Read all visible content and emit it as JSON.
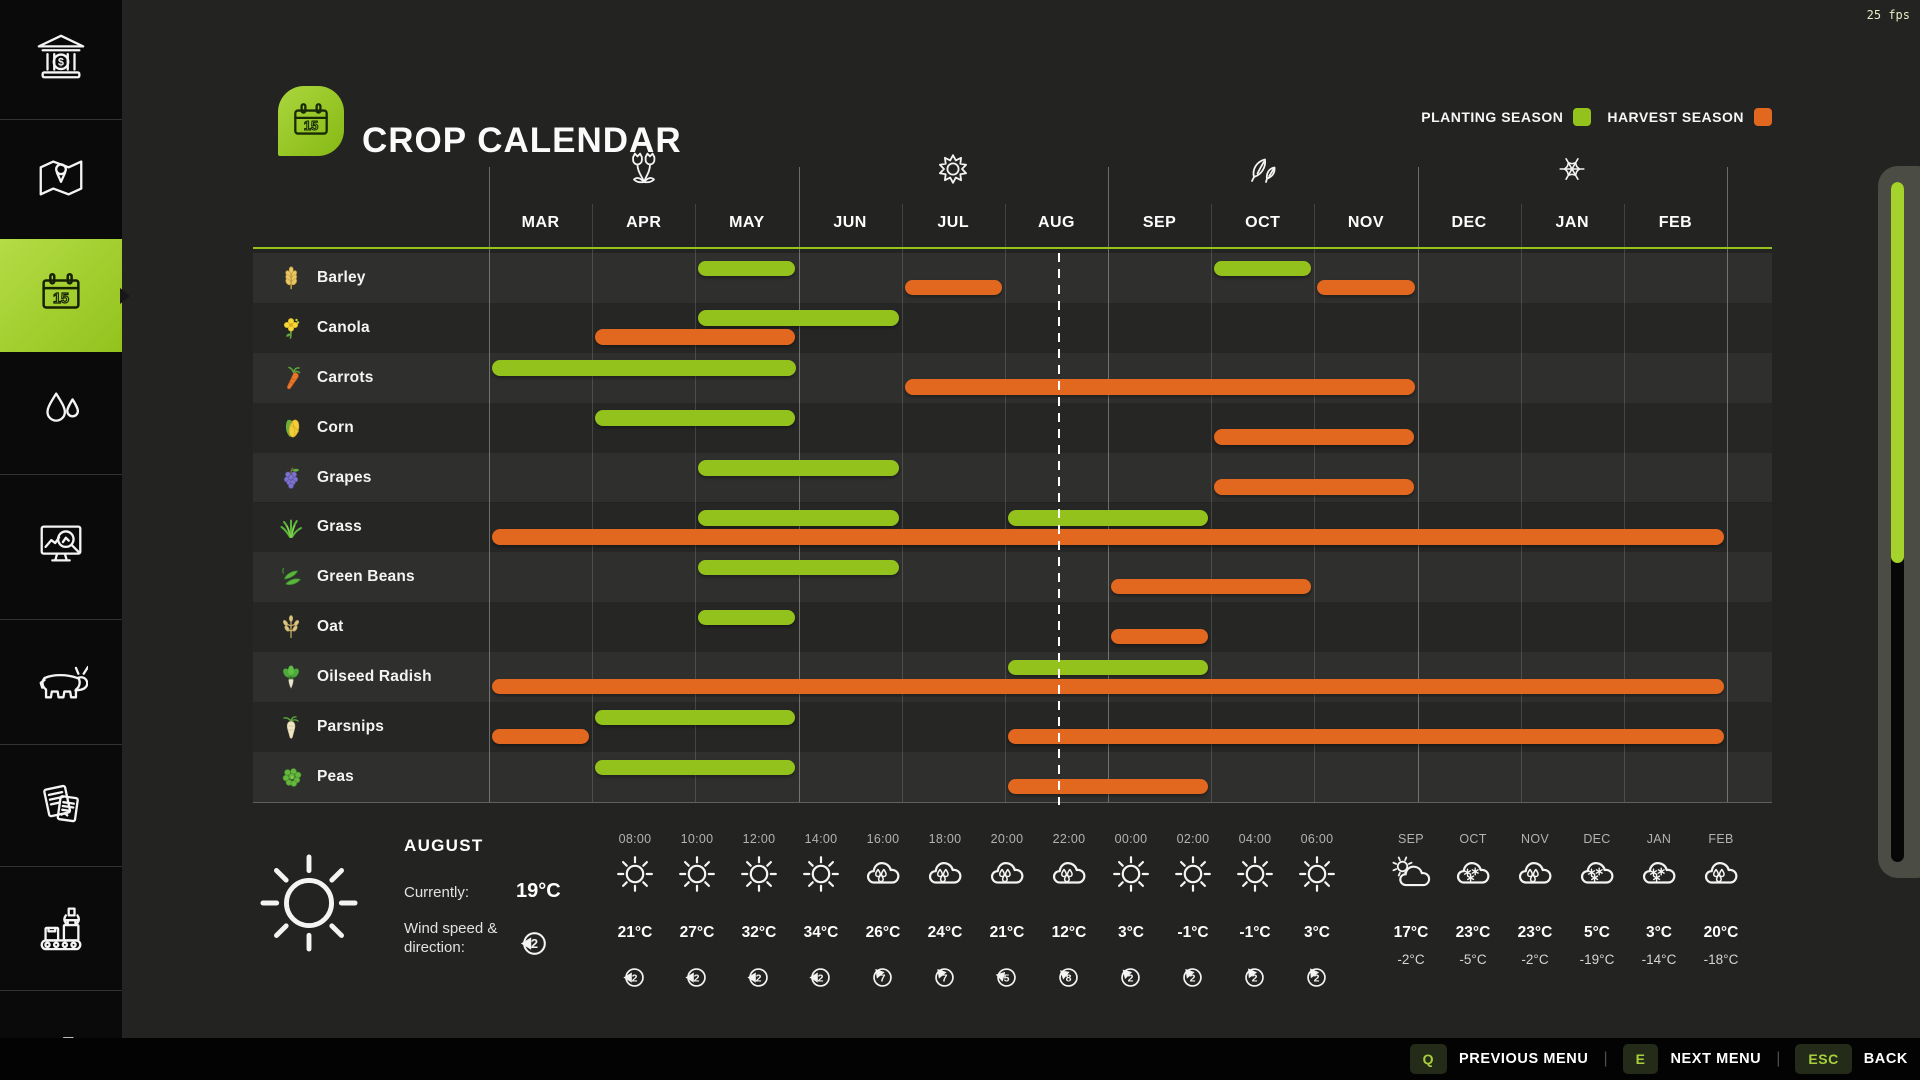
{
  "hud": {
    "fps_counter": "25 fps"
  },
  "header": {
    "title": "CROP CALENDAR",
    "legend": [
      {
        "label": "PLANTING SEASON",
        "color": "#93c21c"
      },
      {
        "label": "HARVEST SEASON",
        "color": "#e2671f"
      }
    ]
  },
  "calendar": {
    "months": [
      "MAR",
      "APR",
      "MAY",
      "JUN",
      "JUL",
      "AUG",
      "SEP",
      "OCT",
      "NOV",
      "DEC",
      "JAN",
      "FEB"
    ],
    "season_icons": [
      "spring-tulips",
      "summer-sun",
      "autumn-leaves",
      "winter-snowflake"
    ],
    "planting_color": "#93c21c",
    "harvest_color": "#e2671f",
    "current_day_position_months": 5.51,
    "crops": [
      {
        "name": "Barley",
        "icon": "barley",
        "planting": [
          {
            "start": "MAY",
            "months": 1
          },
          {
            "start": "OCT",
            "months": 1
          }
        ],
        "harvest": [
          {
            "start": "JUL",
            "months": 1
          },
          {
            "start": "NOV",
            "months": 1
          }
        ]
      },
      {
        "name": "Canola",
        "icon": "canola",
        "planting": [
          {
            "start": "MAY",
            "months": 2
          }
        ],
        "harvest": [
          {
            "start": "APR",
            "months": 2
          }
        ]
      },
      {
        "name": "Carrots",
        "icon": "carrots",
        "planting": [
          {
            "start": "MAR",
            "months": 3
          }
        ],
        "harvest": [
          {
            "start": "JUL",
            "months": 5
          }
        ]
      },
      {
        "name": "Corn",
        "icon": "corn",
        "planting": [
          {
            "start": "APR",
            "months": 2
          }
        ],
        "harvest": [
          {
            "start": "OCT",
            "months": 2
          }
        ]
      },
      {
        "name": "Grapes",
        "icon": "grapes",
        "planting": [
          {
            "start": "MAY",
            "months": 2
          }
        ],
        "harvest": [
          {
            "start": "OCT",
            "months": 2
          }
        ]
      },
      {
        "name": "Grass",
        "icon": "grass",
        "planting": [
          {
            "start": "MAY",
            "months": 2
          },
          {
            "start": "AUG",
            "months": 2
          }
        ],
        "harvest": [
          {
            "start": "MAR",
            "months": 12
          }
        ]
      },
      {
        "name": "Green Beans",
        "icon": "green-beans",
        "planting": [
          {
            "start": "MAY",
            "months": 2
          }
        ],
        "harvest": [
          {
            "start": "SEP",
            "months": 2
          }
        ]
      },
      {
        "name": "Oat",
        "icon": "oat",
        "planting": [
          {
            "start": "MAY",
            "months": 1
          }
        ],
        "harvest": [
          {
            "start": "SEP",
            "months": 1
          }
        ]
      },
      {
        "name": "Oilseed Radish",
        "icon": "oilseed-radish",
        "planting": [
          {
            "start": "AUG",
            "months": 2
          }
        ],
        "harvest": [
          {
            "start": "MAR",
            "months": 12
          }
        ]
      },
      {
        "name": "Parsnips",
        "icon": "parsnips",
        "planting": [
          {
            "start": "APR",
            "months": 2
          }
        ],
        "harvest": [
          {
            "start": "MAR",
            "months": 1
          },
          {
            "start": "AUG",
            "months": 7
          }
        ]
      },
      {
        "name": "Peas",
        "icon": "peas",
        "planting": [
          {
            "start": "APR",
            "months": 2
          }
        ],
        "harvest": [
          {
            "start": "AUG",
            "months": 2
          }
        ]
      }
    ]
  },
  "weather": {
    "current_month": "AUGUST",
    "currently_label": "Currently:",
    "current_temperature": "19°C",
    "wind_label_line1": "Wind speed &",
    "wind_label_line2": "direction:",
    "current_wind_speed": "2",
    "current_wind_dir_deg": 0,
    "hourly": [
      {
        "time": "08:00",
        "icon": "sun",
        "temp": "21°C",
        "wind": "2",
        "wind_dir_deg": 0
      },
      {
        "time": "10:00",
        "icon": "sun",
        "temp": "27°C",
        "wind": "2",
        "wind_dir_deg": 0
      },
      {
        "time": "12:00",
        "icon": "sun",
        "temp": "32°C",
        "wind": "2",
        "wind_dir_deg": 0
      },
      {
        "time": "14:00",
        "icon": "sun",
        "temp": "34°C",
        "wind": "2",
        "wind_dir_deg": 0
      },
      {
        "time": "16:00",
        "icon": "rain",
        "temp": "26°C",
        "wind": "7",
        "wind_dir_deg": 50
      },
      {
        "time": "18:00",
        "icon": "rain",
        "temp": "24°C",
        "wind": "7",
        "wind_dir_deg": 50
      },
      {
        "time": "20:00",
        "icon": "rain",
        "temp": "21°C",
        "wind": "5",
        "wind_dir_deg": 15
      },
      {
        "time": "22:00",
        "icon": "rain",
        "temp": "12°C",
        "wind": "8",
        "wind_dir_deg": 40
      },
      {
        "time": "00:00",
        "icon": "sun",
        "temp": "3°C",
        "wind": "2",
        "wind_dir_deg": 45
      },
      {
        "time": "02:00",
        "icon": "sun",
        "temp": "-1°C",
        "wind": "2",
        "wind_dir_deg": 50
      },
      {
        "time": "04:00",
        "icon": "sun",
        "temp": "-1°C",
        "wind": "2",
        "wind_dir_deg": 55
      },
      {
        "time": "06:00",
        "icon": "sun",
        "temp": "3°C",
        "wind": "2",
        "wind_dir_deg": 55
      }
    ],
    "monthly": [
      {
        "month": "SEP",
        "icon": "partly-cloudy",
        "high": "17°C",
        "low": "-2°C"
      },
      {
        "month": "OCT",
        "icon": "snow",
        "high": "23°C",
        "low": "-5°C"
      },
      {
        "month": "NOV",
        "icon": "rain",
        "high": "23°C",
        "low": "-2°C"
      },
      {
        "month": "DEC",
        "icon": "snow",
        "high": "5°C",
        "low": "-19°C"
      },
      {
        "month": "JAN",
        "icon": "snow",
        "high": "3°C",
        "low": "-14°C"
      },
      {
        "month": "FEB",
        "icon": "rain",
        "high": "20°C",
        "low": "-18°C"
      }
    ]
  },
  "sidebar": {
    "active_index": 2,
    "items": [
      {
        "icon": "finances-bank-icon"
      },
      {
        "icon": "map-icon"
      },
      {
        "icon": "calendar-icon",
        "active": true
      },
      {
        "icon": "precipitation-drops-icon"
      },
      {
        "icon": "prices-chart-icon"
      },
      {
        "icon": "animals-cow-icon"
      },
      {
        "icon": "contracts-icon"
      },
      {
        "icon": "production-icon"
      },
      {
        "icon": "statistics-trend-icon"
      }
    ]
  },
  "menu_bar": {
    "items": [
      {
        "key": "Q",
        "label": "PREVIOUS MENU"
      },
      {
        "key": "E",
        "label": "NEXT MENU"
      },
      {
        "key": "ESC",
        "label": "BACK"
      }
    ]
  }
}
